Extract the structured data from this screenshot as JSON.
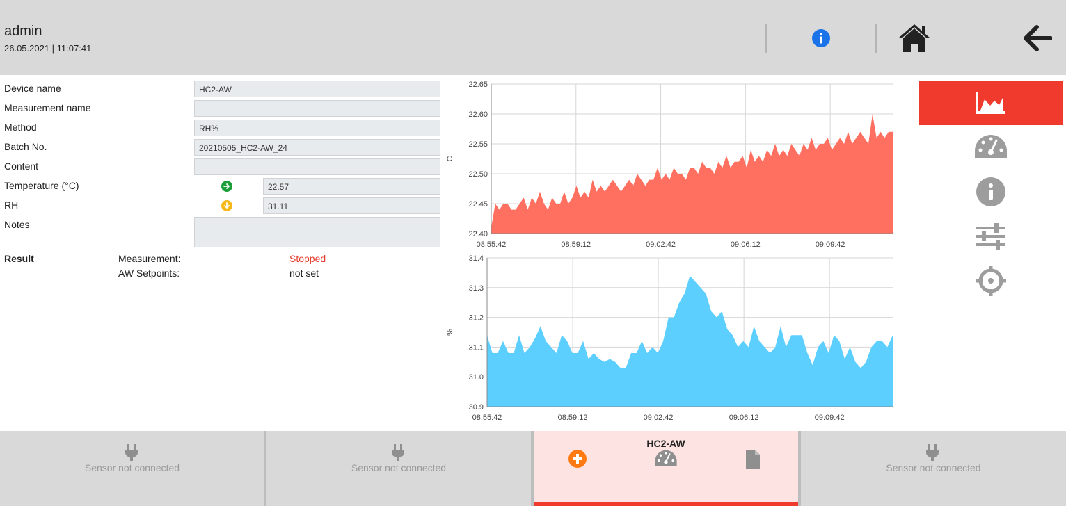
{
  "header": {
    "user": "admin",
    "datetime": "26.05.2021 | 11:07:41",
    "icons": [
      "info-icon",
      "home-icon",
      "back-arrow-icon"
    ]
  },
  "form": {
    "device_name": {
      "label": "Device name",
      "value": "HC2-AW"
    },
    "measurement_name": {
      "label": "Measurement name",
      "value": ""
    },
    "method": {
      "label": "Method",
      "value": "RH%"
    },
    "batch_no": {
      "label": "Batch No.",
      "value": "20210505_HC2-AW_24"
    },
    "content": {
      "label": "Content",
      "value": ""
    },
    "temperature": {
      "label": "Temperature (°C)",
      "value": "22.57",
      "trend": "rising",
      "trend_color": "#1e9e3a"
    },
    "rh": {
      "label": "RH",
      "value": "31.11",
      "trend": "falling",
      "trend_color": "#f6b91b"
    },
    "notes": {
      "label": "Notes",
      "value": ""
    }
  },
  "result": {
    "label": "Result",
    "measurement_key": "Measurement:",
    "measurement_value": "Stopped",
    "setpoints_key": "AW Setpoints:",
    "setpoints_value": "not set"
  },
  "chart_data": [
    {
      "type": "area",
      "ylabel": "C",
      "ylim": [
        22.4,
        22.65
      ],
      "yticks": [
        "22.40",
        "22.45",
        "22.50",
        "22.55",
        "22.60",
        "22.65"
      ],
      "xticks": [
        "08:55:42",
        "08:59:12",
        "09:02:42",
        "09:06:12",
        "09:09:42"
      ],
      "xrange": [
        "08:55:42",
        "09:12:17"
      ],
      "color": "#ff7060",
      "grid": true,
      "series": [
        {
          "values": [
            22.41,
            22.45,
            22.44,
            22.45,
            22.45,
            22.44,
            22.44,
            22.45,
            22.46,
            22.44,
            22.46,
            22.45,
            22.47,
            22.45,
            22.44,
            22.46,
            22.45,
            22.45,
            22.47,
            22.45,
            22.46,
            22.48,
            22.46,
            22.47,
            22.46,
            22.49,
            22.47,
            22.48,
            22.47,
            22.48,
            22.49,
            22.48,
            22.47,
            22.48,
            22.49,
            22.48,
            22.5,
            22.49,
            22.48,
            22.49,
            22.49,
            22.51,
            22.49,
            22.5,
            22.49,
            22.51,
            22.5,
            22.5,
            22.49,
            22.51,
            22.51,
            22.5,
            22.52,
            22.51,
            22.51,
            22.5,
            22.52,
            22.51,
            22.53,
            22.51,
            22.52,
            22.52,
            22.53,
            22.51,
            22.54,
            22.52,
            22.53,
            22.52,
            22.54,
            22.53,
            22.55,
            22.53,
            22.54,
            22.53,
            22.55,
            22.54,
            22.53,
            22.55,
            22.54,
            22.56,
            22.54,
            22.55,
            22.55,
            22.56,
            22.54,
            22.55,
            22.56,
            22.55,
            22.57,
            22.55,
            22.56,
            22.57,
            22.56,
            22.55,
            22.6,
            22.56,
            22.57,
            22.56,
            22.57,
            22.57
          ]
        }
      ]
    },
    {
      "type": "area",
      "ylabel": "%",
      "ylim": [
        30.9,
        31.4
      ],
      "yticks": [
        "30.9",
        "31.0",
        "31.1",
        "31.2",
        "31.3",
        "31.4"
      ],
      "xticks": [
        "08:55:42",
        "08:59:12",
        "09:02:42",
        "09:06:12",
        "09:09:42"
      ],
      "xrange": [
        "08:55:42",
        "09:12:17"
      ],
      "color": "#5ccfff",
      "grid": true,
      "series": [
        {
          "values": [
            31.14,
            31.08,
            31.08,
            31.12,
            31.08,
            31.08,
            31.14,
            31.08,
            31.1,
            31.13,
            31.17,
            31.12,
            31.1,
            31.08,
            31.14,
            31.12,
            31.08,
            31.08,
            31.12,
            31.06,
            31.08,
            31.06,
            31.05,
            31.06,
            31.05,
            31.03,
            31.03,
            31.08,
            31.08,
            31.12,
            31.08,
            31.1,
            31.08,
            31.12,
            31.2,
            31.2,
            31.25,
            31.28,
            31.34,
            31.32,
            31.3,
            31.28,
            31.22,
            31.2,
            31.22,
            31.16,
            31.14,
            31.1,
            31.12,
            31.1,
            31.17,
            31.12,
            31.1,
            31.08,
            31.1,
            31.17,
            31.1,
            31.14,
            31.14,
            31.14,
            31.08,
            31.04,
            31.1,
            31.12,
            31.08,
            31.14,
            31.12,
            31.06,
            31.1,
            31.05,
            31.03,
            31.05,
            31.1,
            31.12,
            31.12,
            31.1,
            31.14
          ]
        }
      ]
    }
  ],
  "rail": {
    "items": [
      "area-chart-icon",
      "gauge-icon",
      "info-icon",
      "sliders-icon",
      "crosshair-icon"
    ],
    "active_color": "#f03a2e"
  },
  "tabs": [
    {
      "status": "Sensor not connected"
    },
    {
      "status": "Sensor not connected"
    },
    {
      "title": "HC2-AW",
      "icons": [
        "add-icon",
        "gauge-icon",
        "document-icon"
      ]
    },
    {
      "status": "Sensor not connected"
    }
  ]
}
